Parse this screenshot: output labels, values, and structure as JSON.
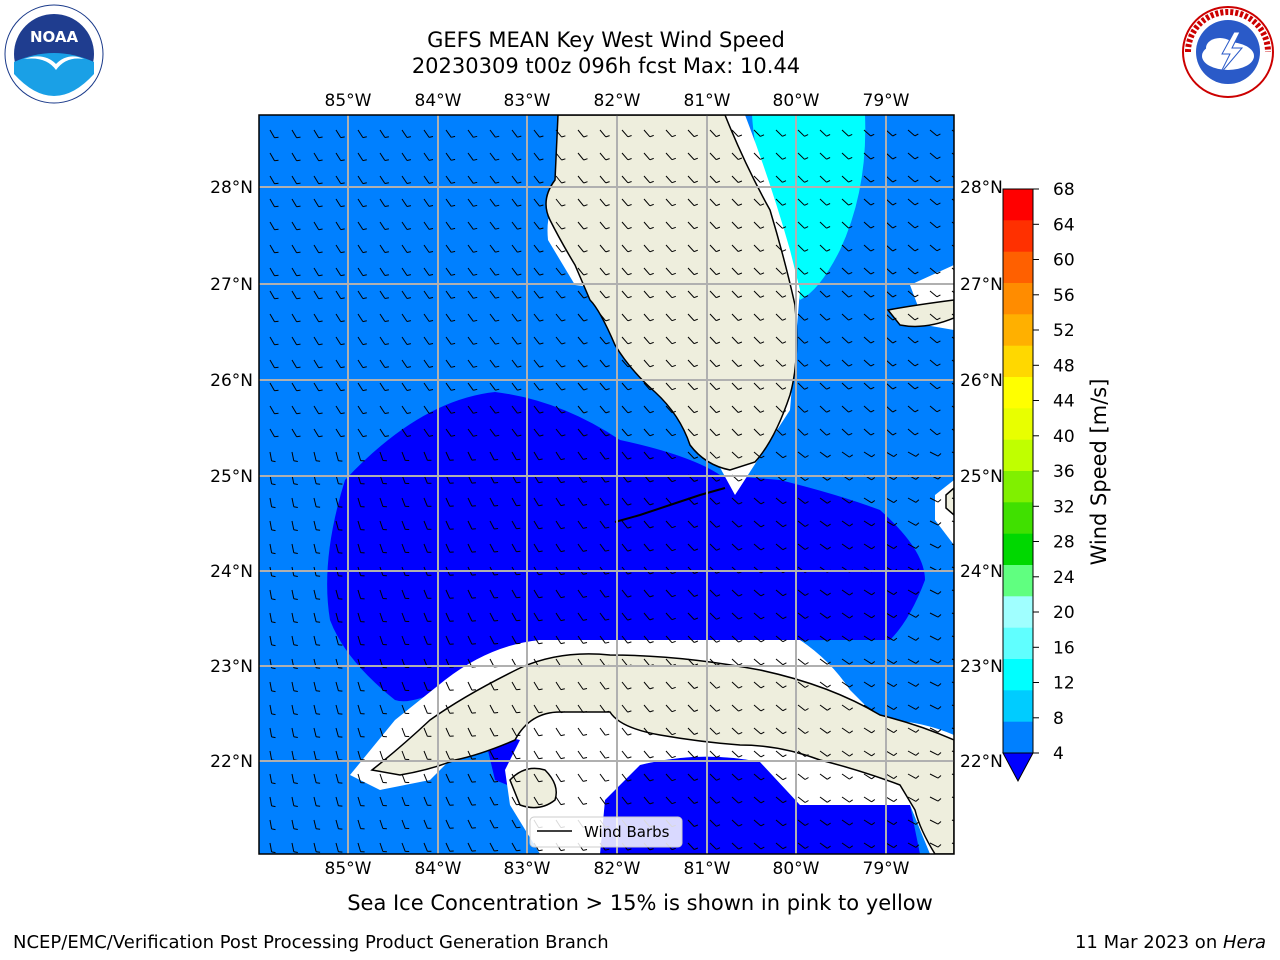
{
  "title": {
    "line1": "GEFS MEAN Key West Wind Speed",
    "line2": "20230309 t00z 096h fcst   Max: 10.44"
  },
  "map": {
    "lon_ticks": [
      "85°W",
      "84°W",
      "83°W",
      "82°W",
      "81°W",
      "80°W",
      "79°W"
    ],
    "lat_ticks": [
      "28°N",
      "27°N",
      "26°N",
      "25°N",
      "24°N",
      "23°N",
      "22°N"
    ],
    "legend_label": "Wind Barbs"
  },
  "colorbar": {
    "label": "Wind Speed [m/s]",
    "ticks": [
      "68",
      "64",
      "60",
      "56",
      "52",
      "48",
      "44",
      "40",
      "36",
      "32",
      "28",
      "24",
      "20",
      "16",
      "12",
      "8",
      "4"
    ],
    "colors": [
      "#ff0000",
      "#ff3000",
      "#ff6000",
      "#ff8c00",
      "#ffb000",
      "#ffd800",
      "#ffff00",
      "#e8ff00",
      "#c0ff00",
      "#80f000",
      "#40e000",
      "#00d800",
      "#60ff80",
      "#a0ffff",
      "#60ffff",
      "#00ffff",
      "#00ccff",
      "#0080ff"
    ],
    "extend_color": "#0000ff"
  },
  "footer": {
    "sea_ice_note": "Sea Ice Concentration > 15% is shown in pink to yellow",
    "left": "NCEP/EMC/Verification Post Processing Product Generation Branch",
    "right_date": "11 Mar 2023 on ",
    "right_host": "Hera"
  },
  "logos": {
    "noaa_text": "NOAA",
    "nws_text": "NATIONAL WEATHER SERVICE"
  },
  "colors": {
    "ocean_light": "#0080ff",
    "ocean_dark": "#0000ff",
    "cyan_zone": "#00ffff",
    "land": "#eeeedd",
    "grid": "#b0b0b0"
  }
}
